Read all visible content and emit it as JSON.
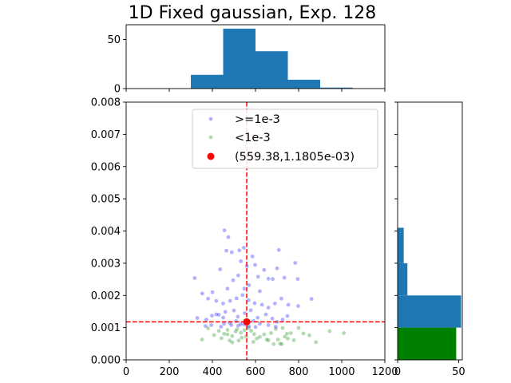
{
  "chart_data": {
    "title": "1D Fixed gaussian, Exp. 128",
    "scatter": {
      "type": "scatter",
      "xlim": [
        0,
        1200
      ],
      "ylim": [
        0,
        0.008
      ],
      "xticks": [
        0,
        200,
        400,
        600,
        800,
        1000,
        1200
      ],
      "yticks": [
        0.0,
        0.001,
        0.002,
        0.003,
        0.004,
        0.005,
        0.006,
        0.007,
        0.008
      ],
      "xtick_labels": [
        "0",
        "200",
        "400",
        "600",
        "800",
        "1000",
        "1200"
      ],
      "ytick_labels": [
        "0.000",
        "0.001",
        "0.002",
        "0.003",
        "0.004",
        "0.005",
        "0.006",
        "0.007",
        "0.008"
      ],
      "legend_position": "top-center",
      "threshold_y": 0.0011805,
      "marker": {
        "x": 559.38,
        "y": 0.0011805,
        "label": "(559.38,1.1805e-03)",
        "color": "#ff0000"
      },
      "series": [
        {
          "name": ">=1e-3",
          "color": "#0000ff",
          "points": [
            [
              456,
              0.00402
            ],
            [
              474,
              0.00381
            ],
            [
              318,
              0.00254
            ],
            [
              353,
              0.00206
            ],
            [
              436,
              0.00281
            ],
            [
              546,
              0.00348
            ],
            [
              586,
              0.00321
            ],
            [
              708,
              0.00341
            ],
            [
              525,
              0.0034
            ],
            [
              598,
              0.00295
            ],
            [
              612,
              0.00258
            ],
            [
              660,
              0.00252
            ],
            [
              490,
              0.00334
            ],
            [
              465,
              0.00339
            ],
            [
              532,
              0.00306
            ],
            [
              560,
              0.00291
            ],
            [
              640,
              0.00279
            ],
            [
              700,
              0.00284
            ],
            [
              680,
              0.00251
            ],
            [
              734,
              0.00255
            ],
            [
              784,
              0.00301
            ],
            [
              796,
              0.00251
            ],
            [
              520,
              0.00262
            ],
            [
              496,
              0.00247
            ],
            [
              570,
              0.00232
            ],
            [
              620,
              0.00213
            ],
            [
              548,
              0.00221
            ],
            [
              470,
              0.00221
            ],
            [
              400,
              0.0021
            ],
            [
              380,
              0.0019
            ],
            [
              418,
              0.00183
            ],
            [
              450,
              0.00175
            ],
            [
              482,
              0.00183
            ],
            [
              512,
              0.00191
            ],
            [
              540,
              0.00201
            ],
            [
              568,
              0.00185
            ],
            [
              596,
              0.00176
            ],
            [
              630,
              0.00171
            ],
            [
              660,
              0.00162
            ],
            [
              690,
              0.00175
            ],
            [
              720,
              0.0019
            ],
            [
              752,
              0.00171
            ],
            [
              798,
              0.00167
            ],
            [
              860,
              0.00189
            ],
            [
              430,
              0.0014
            ],
            [
              460,
              0.00149
            ],
            [
              500,
              0.00153
            ],
            [
              518,
              0.00134
            ],
            [
              550,
              0.00145
            ],
            [
              578,
              0.00154
            ],
            [
              610,
              0.00131
            ],
            [
              648,
              0.00141
            ],
            [
              678,
              0.00128
            ],
            [
              700,
              0.00118
            ],
            [
              726,
              0.00125
            ],
            [
              748,
              0.00136
            ],
            [
              330,
              0.0013
            ],
            [
              372,
              0.00125
            ],
            [
              398,
              0.00137
            ],
            [
              418,
              0.00141
            ],
            [
              450,
              0.00131
            ],
            [
              480,
              0.00115
            ],
            [
              510,
              0.0012
            ],
            [
              532,
              0.00111
            ],
            [
              590,
              0.00121
            ],
            [
              620,
              0.00112
            ],
            [
              368,
              0.00105
            ],
            [
              395,
              0.00108
            ],
            [
              440,
              0.00103
            ],
            [
              488,
              0.00108
            ],
            [
              520,
              0.00106
            ],
            [
              570,
              0.00104
            ],
            [
              600,
              0.00102
            ],
            [
              660,
              0.00108
            ],
            [
              694,
              0.00103
            ],
            [
              548,
              0.0011
            ],
            [
              454,
              0.00112
            ]
          ]
        },
        {
          "name": "<1e-3",
          "color": "#008000",
          "points": [
            [
              352,
              0.00063
            ],
            [
              380,
              0.00098
            ],
            [
              408,
              0.00077
            ],
            [
              430,
              0.0009
            ],
            [
              442,
              0.00067
            ],
            [
              470,
              0.00079
            ],
            [
              480,
              0.0006
            ],
            [
              492,
              0.00054
            ],
            [
              508,
              0.00088
            ],
            [
              522,
              0.0006
            ],
            [
              536,
              0.00069
            ],
            [
              548,
              0.00092
            ],
            [
              556,
              0.00073
            ],
            [
              568,
              0.00099
            ],
            [
              580,
              0.0009
            ],
            [
              594,
              0.0008
            ],
            [
              606,
              0.00066
            ],
            [
              620,
              0.00071
            ],
            [
              640,
              0.00079
            ],
            [
              660,
              0.00061
            ],
            [
              672,
              0.00083
            ],
            [
              694,
              0.00096
            ],
            [
              704,
              0.00063
            ],
            [
              714,
              0.0005
            ],
            [
              722,
              0.00049
            ],
            [
              736,
              0.00072
            ],
            [
              750,
              0.00066
            ],
            [
              764,
              0.00083
            ],
            [
              778,
              0.00061
            ],
            [
              800,
              0.00099
            ],
            [
              822,
              0.00082
            ],
            [
              850,
              0.00076
            ],
            [
              880,
              0.00055
            ],
            [
              944,
              0.00089
            ],
            [
              1010,
              0.00083
            ],
            [
              684,
              0.00049
            ],
            [
              652,
              0.00063
            ],
            [
              492,
              0.00074
            ],
            [
              514,
              0.00095
            ],
            [
              590,
              0.00056
            ],
            [
              532,
              0.00084
            ],
            [
              470,
              0.00093
            ],
            [
              454,
              0.00081
            ],
            [
              726,
              0.00099
            ],
            [
              746,
              0.00081
            ]
          ]
        }
      ]
    },
    "top_histogram": {
      "type": "bar",
      "xlim": [
        0,
        1200
      ],
      "ylim": [
        0,
        65
      ],
      "yticks": [
        0,
        50
      ],
      "ytick_labels": [
        "0",
        "50"
      ],
      "bin_edges": [
        300,
        450,
        600,
        750,
        900,
        1050
      ],
      "values": [
        14,
        61,
        38,
        9,
        1
      ],
      "color": "#1f77b4"
    },
    "right_histogram": {
      "type": "bar",
      "orientation": "horizontal",
      "xlim": [
        0,
        53
      ],
      "xticks": [
        0,
        50
      ],
      "xtick_labels": [
        "0",
        "50"
      ],
      "ylim": [
        0,
        0.008
      ],
      "series": [
        {
          "bins": [
            [
              0.0041,
              0.004,
              5
            ],
            [
              0.003,
              0.004,
              5
            ],
            [
              0.002,
              0.003,
              8
            ],
            [
              0.001,
              0.002,
              52
            ]
          ],
          "color": "#1f77b4"
        },
        {
          "bins": [
            [
              0.0,
              0.001,
              48
            ]
          ],
          "color": "#008000"
        }
      ]
    }
  }
}
